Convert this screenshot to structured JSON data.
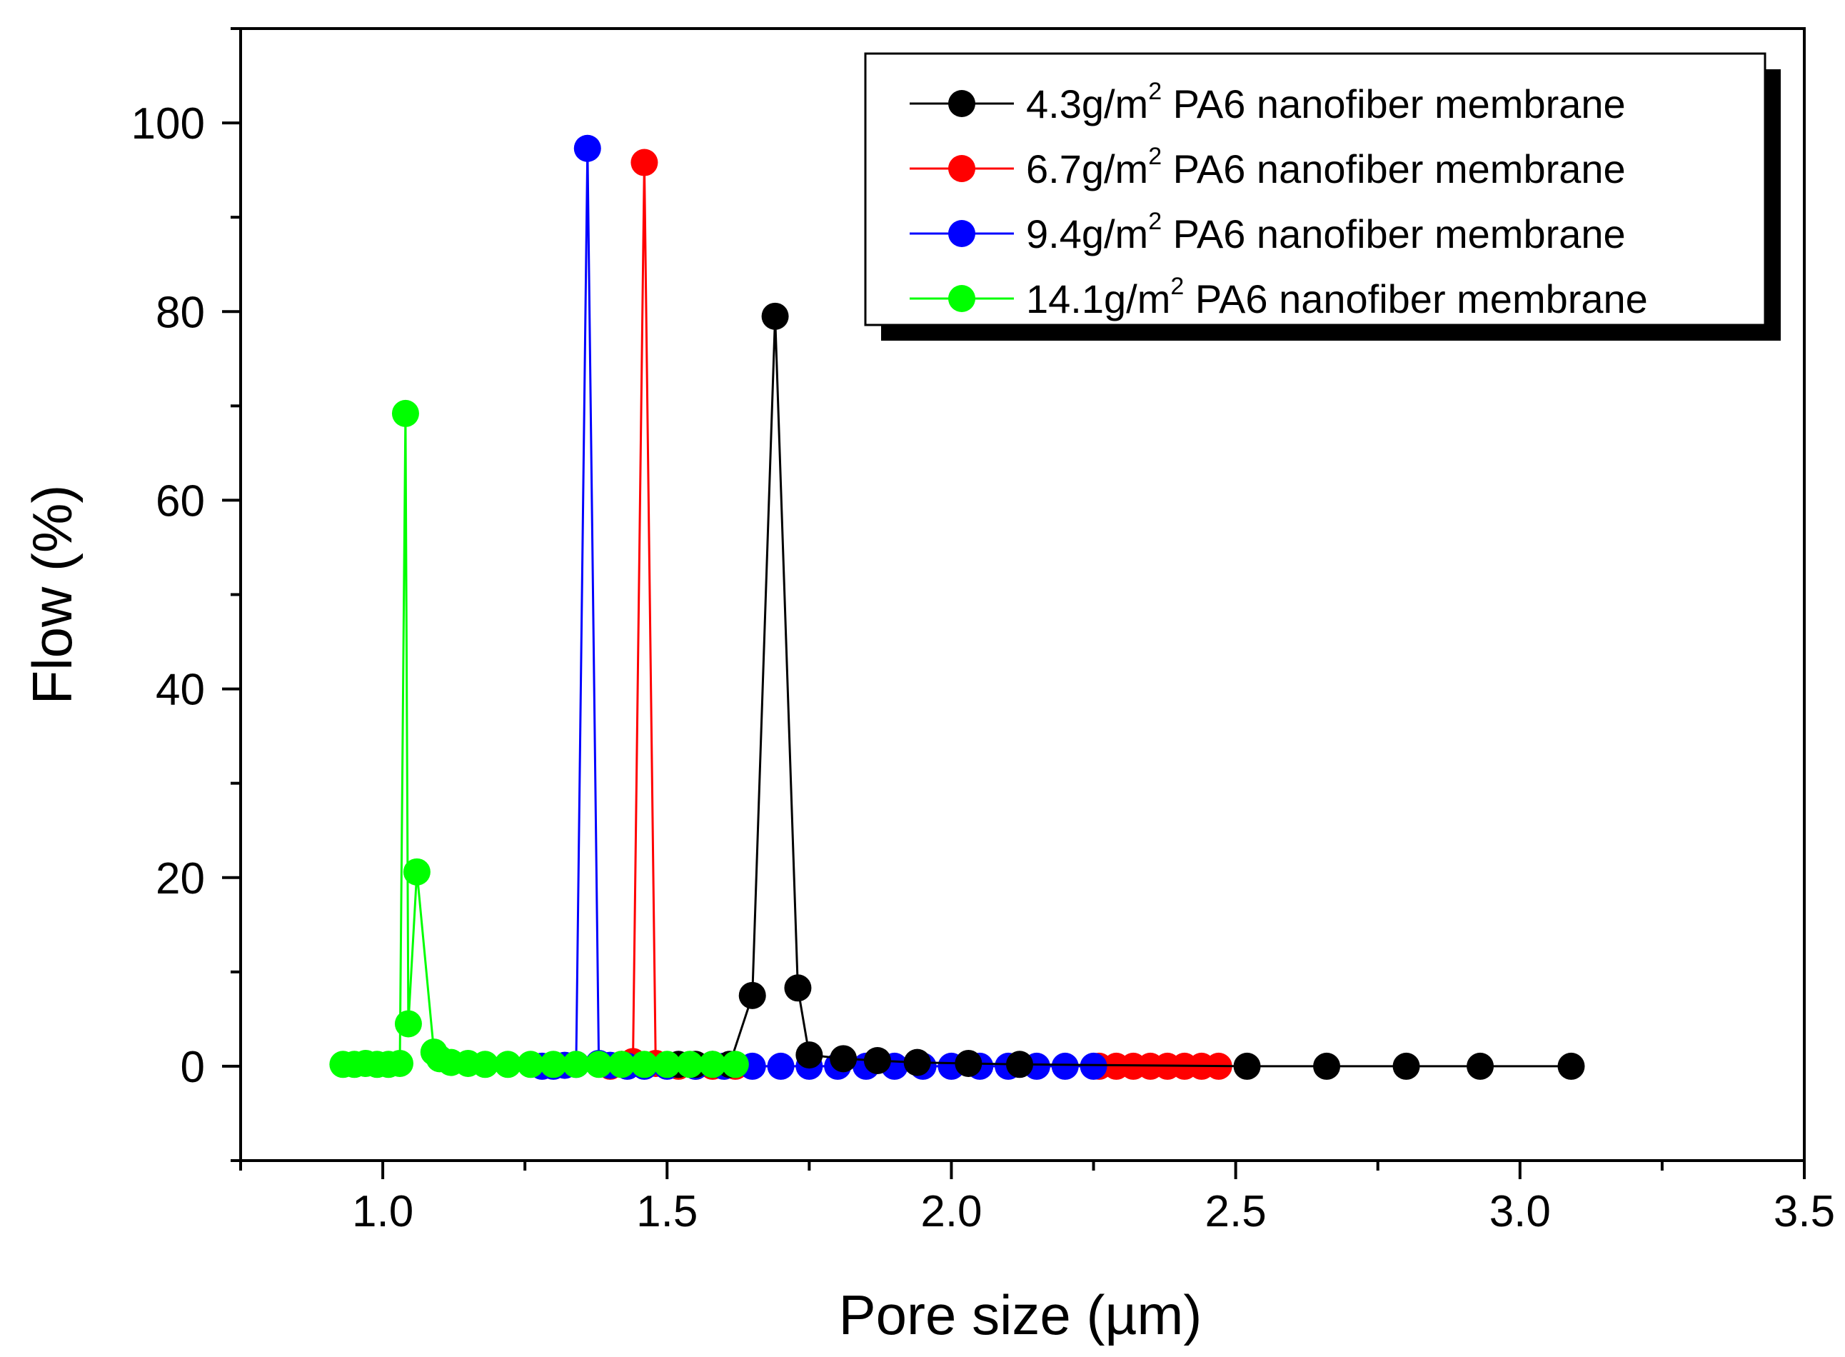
{
  "chart_data": {
    "type": "line",
    "title": "",
    "xlabel": "Pore size (µm)",
    "ylabel": "Flow (%)",
    "xlim": [
      0.75,
      3.5
    ],
    "ylim": [
      -10,
      110
    ],
    "xticks": [
      1.0,
      1.5,
      2.0,
      2.5,
      3.0,
      3.5
    ],
    "xtick_labels": [
      "1.0",
      "1.5",
      "2.0",
      "2.5",
      "3.0",
      "3.5"
    ],
    "yticks": [
      0,
      20,
      40,
      60,
      80,
      100
    ],
    "ytick_labels": [
      "0",
      "20",
      "40",
      "60",
      "80",
      "100"
    ],
    "grid": false,
    "legend_position": "top-right",
    "series": [
      {
        "name": "4.3g/m",
        "superscript": "2",
        "suffix": " PA6 nanofiber membrane",
        "color": "#000000",
        "x": [
          1.52,
          1.55,
          1.58,
          1.61,
          1.65,
          1.69,
          1.73,
          1.75,
          1.81,
          1.87,
          1.94,
          2.03,
          2.12,
          2.52,
          2.66,
          2.8,
          2.93,
          3.09
        ],
        "y": [
          0.2,
          0.2,
          0.2,
          0.2,
          7.5,
          79.5,
          8.3,
          1.2,
          0.8,
          0.6,
          0.4,
          0.3,
          0.2,
          0.0,
          0.0,
          0.0,
          0.0,
          0.0
        ]
      },
      {
        "name": "6.7g/m",
        "superscript": "2",
        "suffix": " PA6 nanofiber membrane",
        "color": "#ff0000",
        "x": [
          1.4,
          1.42,
          1.44,
          1.46,
          1.48,
          1.5,
          1.52,
          1.55,
          1.58,
          1.62,
          2.26,
          2.29,
          2.32,
          2.35,
          2.38,
          2.41,
          2.44,
          2.47
        ],
        "y": [
          0.0,
          0.2,
          0.5,
          95.8,
          0.3,
          0.1,
          0.0,
          0.0,
          0.0,
          0.0,
          0.0,
          0.0,
          0.0,
          0.0,
          0.0,
          0.0,
          0.0,
          0.0
        ]
      },
      {
        "name": "9.4g/m",
        "superscript": "2",
        "suffix": " PA6 nanofiber membrane",
        "color": "#0000ff",
        "x": [
          1.28,
          1.3,
          1.32,
          1.34,
          1.36,
          1.38,
          1.4,
          1.43,
          1.46,
          1.5,
          1.55,
          1.6,
          1.65,
          1.7,
          1.75,
          1.8,
          1.85,
          1.9,
          1.95,
          2.0,
          2.05,
          2.1,
          2.15,
          2.2,
          2.25
        ],
        "y": [
          0.0,
          0.0,
          0.1,
          0.2,
          97.3,
          0.3,
          0.1,
          0.0,
          0.0,
          0.0,
          0.0,
          0.0,
          0.0,
          0.0,
          0.0,
          0.0,
          0.0,
          0.0,
          0.0,
          0.0,
          0.0,
          0.0,
          0.0,
          0.0,
          0.0
        ]
      },
      {
        "name": "14.1g/m",
        "superscript": "2",
        "suffix": " PA6 nanofiber membrane",
        "color": "#00ff00",
        "x": [
          0.93,
          0.95,
          0.97,
          0.99,
          1.01,
          1.03,
          1.04,
          1.045,
          1.06,
          1.09,
          1.1,
          1.12,
          1.15,
          1.18,
          1.22,
          1.26,
          1.3,
          1.34,
          1.38,
          1.42,
          1.46,
          1.5,
          1.54,
          1.58,
          1.62
        ],
        "y": [
          0.2,
          0.2,
          0.3,
          0.2,
          0.2,
          0.3,
          69.2,
          4.5,
          20.6,
          1.5,
          0.8,
          0.4,
          0.3,
          0.2,
          0.2,
          0.2,
          0.2,
          0.2,
          0.2,
          0.2,
          0.2,
          0.2,
          0.2,
          0.2,
          0.2
        ]
      }
    ]
  }
}
